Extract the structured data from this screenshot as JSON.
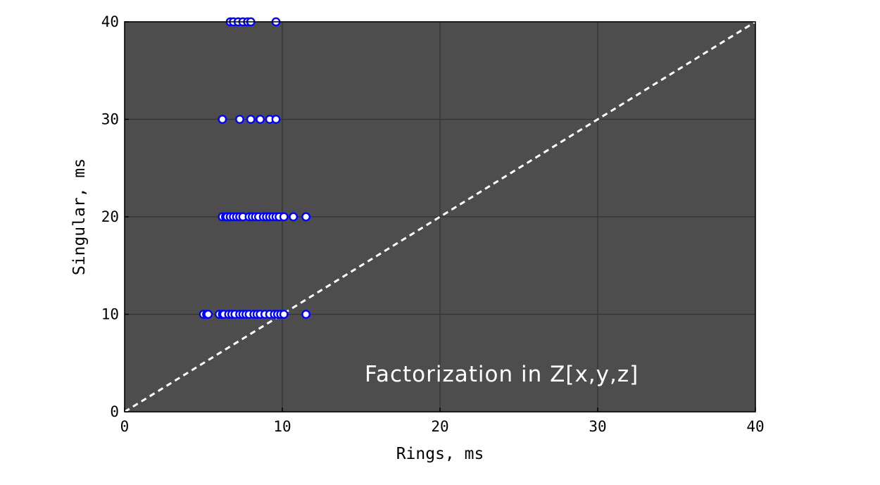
{
  "chart_data": {
    "type": "scatter",
    "title": "",
    "xlabel": "Rings, ms",
    "ylabel": "Singular, ms",
    "xlim": [
      0,
      40
    ],
    "ylim": [
      0,
      40
    ],
    "xticks": [
      "0",
      "10",
      "20",
      "30",
      "40"
    ],
    "yticks": [
      "0",
      "10",
      "20",
      "30",
      "40"
    ],
    "grid": true,
    "annotation": "Factorization in Z[x,y,z]",
    "reference_line": {
      "style": "dashed",
      "color": "#ffffff",
      "from": [
        0,
        0
      ],
      "to": [
        40,
        40
      ]
    },
    "colors": {
      "background": "#4d4d4d",
      "grid": "#333333",
      "marker_edge": "#0000ff",
      "marker_fill": "#ffffff"
    },
    "series": [
      {
        "x": [
          5.0,
          5.2,
          5.3,
          6.0,
          6.2,
          6.3,
          6.6,
          6.8,
          7.0,
          7.3,
          7.5,
          7.7,
          7.9,
          8.2,
          8.4,
          8.6,
          8.9,
          9.2,
          9.5,
          9.7,
          9.9,
          10.1,
          11.5,
          6.2,
          6.4,
          6.5,
          6.7,
          6.9,
          7.1,
          7.3,
          7.5,
          7.9,
          8.1,
          8.3,
          8.5,
          8.8,
          9.0,
          9.2,
          9.4,
          9.6,
          9.8,
          10.1,
          10.7,
          11.5,
          6.2,
          7.3,
          8.0,
          8.6,
          9.2,
          9.6,
          6.7,
          6.9,
          7.2,
          7.5,
          7.8,
          8.0,
          9.6
        ],
        "y": [
          10,
          10,
          10,
          10,
          10,
          10,
          10,
          10,
          10,
          10,
          10,
          10,
          10,
          10,
          10,
          10,
          10,
          10,
          10,
          10,
          10,
          10,
          10,
          20,
          20,
          20,
          20,
          20,
          20,
          20,
          20,
          20,
          20,
          20,
          20,
          20,
          20,
          20,
          20,
          20,
          20,
          20,
          20,
          20,
          30,
          30,
          30,
          30,
          30,
          30,
          40,
          40,
          40,
          40,
          40,
          40,
          40
        ]
      }
    ]
  }
}
